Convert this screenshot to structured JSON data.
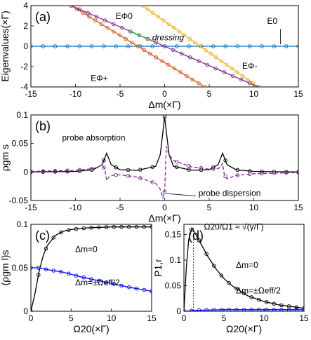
{
  "chart_data": [
    {
      "type": "line",
      "panel_label": "(a)",
      "ylabel": "Eigenvalues(×Γ)",
      "xlabel": "Δm(×Γ)",
      "xlim": [
        -15,
        15
      ],
      "ylim": [
        -4,
        4
      ],
      "xticks": [
        "-15",
        "-10",
        "-5",
        "0",
        "5",
        "10",
        "15"
      ],
      "yticks": [
        "4",
        "2",
        "0",
        "-2",
        "-4"
      ],
      "series": [
        {
          "name": "E0",
          "color": "#0072bd",
          "x": [
            -15,
            15
          ],
          "y": [
            0,
            0
          ]
        },
        {
          "name": "EΦ+",
          "color": "#d95319",
          "x": [
            -10.5,
            4.5
          ],
          "y": [
            4,
            -4
          ]
        },
        {
          "name": "EΦ0",
          "color": "#edb120",
          "x": [
            -2.5,
            10.5
          ],
          "y": [
            4,
            -4
          ]
        },
        {
          "name": "EΦ-",
          "color": "#7e2f8e",
          "x": [
            -10.5,
            10.5
          ],
          "y": [
            4,
            -4
          ]
        }
      ],
      "annotations": [
        "EΦ0",
        "E0",
        "EΦ-",
        "EΦ+",
        "dressing"
      ]
    },
    {
      "type": "line",
      "panel_label": "(b)",
      "ylabel": "ρgm s",
      "xlabel": "Δm(×Γ)",
      "xlim": [
        -15,
        15
      ],
      "ylim": [
        -0.05,
        0.1
      ],
      "xticks": [
        "-15",
        "-10",
        "-5",
        "0",
        "5",
        "10",
        "15"
      ],
      "yticks": [
        "0.1",
        "0.05",
        "0",
        "-0.05"
      ],
      "series": [
        {
          "name": "probe absorption",
          "color": "#000000",
          "x": [
            -15,
            -10,
            -8,
            -7,
            -6.7,
            -6.5,
            -6.3,
            -6,
            -5,
            -3,
            -1,
            -0.5,
            -0.2,
            0,
            0.2,
            0.5,
            1,
            3,
            5,
            6,
            6.3,
            6.5,
            6.7,
            7,
            8,
            10,
            15
          ],
          "y": [
            0,
            0.001,
            0.004,
            0.013,
            0.025,
            0.033,
            0.025,
            0.013,
            0.004,
            0.003,
            0.01,
            0.03,
            0.07,
            0.097,
            0.07,
            0.03,
            0.01,
            0.003,
            0.004,
            0.013,
            0.025,
            0.033,
            0.025,
            0.013,
            0.004,
            0.001,
            0
          ]
        },
        {
          "name": "probe dispersion",
          "color": "#7e2f8e",
          "x": [
            -15,
            -10,
            -8,
            -7,
            -6.7,
            -6.5,
            -6.3,
            -6,
            -5,
            -3,
            -1,
            -0.5,
            -0.2,
            0,
            0.2,
            0.5,
            1,
            3,
            5,
            6,
            6.3,
            6.5,
            6.7,
            7,
            8,
            10,
            15
          ],
          "y": [
            0.001,
            0.003,
            0.006,
            0.012,
            0.005,
            -0.015,
            -0.01,
            -0.006,
            -0.005,
            -0.009,
            -0.02,
            -0.03,
            -0.045,
            -0.035,
            0.045,
            0.03,
            0.02,
            0.009,
            0.005,
            0.006,
            0.01,
            0.015,
            -0.005,
            -0.012,
            -0.006,
            -0.003,
            -0.001
          ]
        }
      ],
      "annotations": [
        "probe absorption",
        "probe dispersion"
      ]
    },
    {
      "type": "line",
      "panel_label": "(c)",
      "ylabel": "(ρgm l)s",
      "xlabel": "Ω20(×Γ)",
      "xlim": [
        0,
        15
      ],
      "ylim": [
        0,
        0.1
      ],
      "xticks": [
        "0",
        "5",
        "10",
        "15"
      ],
      "yticks": [
        "0.1",
        "0.05",
        "0"
      ],
      "series": [
        {
          "name": "Δm=0",
          "color": "#000000",
          "x": [
            0,
            0.5,
            1,
            1.5,
            2,
            3,
            4,
            5,
            7,
            10,
            15
          ],
          "y": [
            0,
            0.02,
            0.045,
            0.063,
            0.075,
            0.087,
            0.092,
            0.094,
            0.096,
            0.097,
            0.097
          ]
        },
        {
          "name": "Δm=±Ωeff/2",
          "color": "#0000ff",
          "x": [
            0,
            1,
            2,
            4,
            6,
            8,
            10,
            12,
            15
          ],
          "y": [
            0.05,
            0.05,
            0.048,
            0.045,
            0.04,
            0.036,
            0.032,
            0.028,
            0.023
          ]
        }
      ],
      "annotations": [
        "Δm=0",
        "Δm=±Ωeff/2"
      ]
    },
    {
      "type": "line",
      "panel_label": "(d)",
      "ylabel": "P1,r",
      "xlabel": "Ω20(×Γ)",
      "xlim": [
        0,
        15
      ],
      "ylim": [
        0,
        0.17
      ],
      "xticks": [
        "0",
        "5",
        "10",
        "15"
      ],
      "yticks": [
        "0.15",
        "0.1",
        "0.05",
        "0"
      ],
      "series": [
        {
          "name": "Δm=0",
          "color": "#000000",
          "x": [
            0,
            0.3,
            0.6,
            1,
            1.5,
            2,
            3,
            4,
            5,
            6,
            8,
            10,
            12,
            15
          ],
          "y": [
            0,
            0.085,
            0.14,
            0.163,
            0.15,
            0.135,
            0.107,
            0.083,
            0.064,
            0.05,
            0.03,
            0.019,
            0.012,
            0.006
          ]
        },
        {
          "name": "Δm=±Ωeff/2",
          "color": "#0000ff",
          "x": [
            0,
            2,
            5,
            10,
            15
          ],
          "y": [
            0,
            0.002,
            0.003,
            0.003,
            0.003
          ]
        }
      ],
      "annotations": [
        "Ω20/Ω1 ≈ √(γ/Γ)",
        "Δm=0",
        "Δm=±Ωeff/2"
      ]
    }
  ]
}
